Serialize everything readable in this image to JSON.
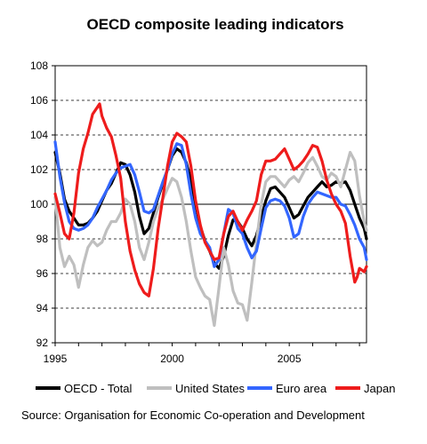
{
  "chart_data": {
    "type": "line",
    "title": "OECD composite leading indicators",
    "xlabel": "",
    "ylabel": "",
    "xlim": [
      1995,
      2008.3
    ],
    "ylim": [
      92,
      108
    ],
    "x_ticks": [
      {
        "value": 1995,
        "label": "1995"
      },
      {
        "value": 2000,
        "label": "2000"
      },
      {
        "value": 2005,
        "label": "2005"
      }
    ],
    "y_ticks": [
      {
        "value": 92,
        "label": "92"
      },
      {
        "value": 94,
        "label": "94"
      },
      {
        "value": 96,
        "label": "96"
      },
      {
        "value": 98,
        "label": "98"
      },
      {
        "value": 100,
        "label": "100"
      },
      {
        "value": 102,
        "label": "102"
      },
      {
        "value": 104,
        "label": "104"
      },
      {
        "value": 106,
        "label": "106"
      },
      {
        "value": 108,
        "label": "108"
      }
    ],
    "grid": "horizontal dashed",
    "baseline": 100,
    "legend_position": "bottom",
    "series": [
      {
        "name": "OECD - Total",
        "color": "#000000",
        "points": [
          [
            1995.0,
            103.0
          ],
          [
            1995.2,
            101.8
          ],
          [
            1995.4,
            100.3
          ],
          [
            1995.6,
            99.6
          ],
          [
            1995.8,
            99.2
          ],
          [
            1996.0,
            98.8
          ],
          [
            1996.2,
            98.8
          ],
          [
            1996.4,
            98.9
          ],
          [
            1996.6,
            99.2
          ],
          [
            1996.8,
            99.6
          ],
          [
            1997.0,
            100.2
          ],
          [
            1997.2,
            100.8
          ],
          [
            1997.4,
            101.2
          ],
          [
            1997.6,
            101.8
          ],
          [
            1997.8,
            102.4
          ],
          [
            1998.0,
            102.3
          ],
          [
            1998.2,
            101.7
          ],
          [
            1998.4,
            100.7
          ],
          [
            1998.6,
            99.3
          ],
          [
            1998.8,
            98.3
          ],
          [
            1999.0,
            98.6
          ],
          [
            1999.2,
            99.5
          ],
          [
            1999.4,
            100.4
          ],
          [
            1999.6,
            101.2
          ],
          [
            1999.8,
            102.0
          ],
          [
            2000.0,
            102.8
          ],
          [
            2000.2,
            103.2
          ],
          [
            2000.4,
            103.0
          ],
          [
            2000.6,
            102.4
          ],
          [
            2000.8,
            101.4
          ],
          [
            2001.0,
            100.0
          ],
          [
            2001.2,
            98.7
          ],
          [
            2001.4,
            97.9
          ],
          [
            2001.6,
            97.3
          ],
          [
            2001.8,
            96.6
          ],
          [
            2002.0,
            96.3
          ],
          [
            2002.2,
            97.0
          ],
          [
            2002.4,
            98.2
          ],
          [
            2002.6,
            99.1
          ],
          [
            2002.8,
            99.0
          ],
          [
            2003.0,
            98.6
          ],
          [
            2003.2,
            98.0
          ],
          [
            2003.4,
            97.6
          ],
          [
            2003.6,
            98.2
          ],
          [
            2003.8,
            99.2
          ],
          [
            2004.0,
            100.2
          ],
          [
            2004.2,
            100.9
          ],
          [
            2004.4,
            101.0
          ],
          [
            2004.6,
            100.7
          ],
          [
            2004.8,
            100.4
          ],
          [
            2005.0,
            99.8
          ],
          [
            2005.2,
            99.2
          ],
          [
            2005.4,
            99.4
          ],
          [
            2005.6,
            99.9
          ],
          [
            2005.8,
            100.4
          ],
          [
            2006.0,
            100.7
          ],
          [
            2006.2,
            101.0
          ],
          [
            2006.4,
            101.3
          ],
          [
            2006.6,
            101.0
          ],
          [
            2006.8,
            101.1
          ],
          [
            2007.0,
            101.3
          ],
          [
            2007.2,
            101.2
          ],
          [
            2007.4,
            101.3
          ],
          [
            2007.6,
            100.8
          ],
          [
            2007.8,
            100.0
          ],
          [
            2008.0,
            99.2
          ],
          [
            2008.2,
            98.6
          ],
          [
            2008.3,
            98.0
          ]
        ]
      },
      {
        "name": "United States",
        "color": "#bfbfbf",
        "points": [
          [
            1995.0,
            100.4
          ],
          [
            1995.2,
            97.5
          ],
          [
            1995.4,
            96.4
          ],
          [
            1995.6,
            97.0
          ],
          [
            1995.8,
            96.5
          ],
          [
            1996.0,
            95.2
          ],
          [
            1996.2,
            96.5
          ],
          [
            1996.4,
            97.5
          ],
          [
            1996.6,
            97.9
          ],
          [
            1996.8,
            97.6
          ],
          [
            1997.0,
            97.8
          ],
          [
            1997.2,
            98.5
          ],
          [
            1997.4,
            99.0
          ],
          [
            1997.6,
            99.0
          ],
          [
            1997.8,
            99.5
          ],
          [
            1998.0,
            100.3
          ],
          [
            1998.2,
            100.0
          ],
          [
            1998.4,
            99.0
          ],
          [
            1998.6,
            97.5
          ],
          [
            1998.8,
            96.8
          ],
          [
            1999.0,
            97.8
          ],
          [
            1999.2,
            99.0
          ],
          [
            1999.4,
            99.8
          ],
          [
            1999.6,
            100.3
          ],
          [
            1999.8,
            100.9
          ],
          [
            2000.0,
            101.5
          ],
          [
            2000.2,
            101.3
          ],
          [
            2000.4,
            100.4
          ],
          [
            2000.6,
            99.0
          ],
          [
            2000.8,
            97.3
          ],
          [
            2001.0,
            95.8
          ],
          [
            2001.2,
            95.2
          ],
          [
            2001.4,
            94.7
          ],
          [
            2001.6,
            94.5
          ],
          [
            2001.8,
            93.0
          ],
          [
            2002.0,
            95.2
          ],
          [
            2002.2,
            97.5
          ],
          [
            2002.4,
            96.5
          ],
          [
            2002.6,
            95.0
          ],
          [
            2002.8,
            94.3
          ],
          [
            2003.0,
            94.2
          ],
          [
            2003.2,
            93.3
          ],
          [
            2003.4,
            95.5
          ],
          [
            2003.6,
            97.8
          ],
          [
            2003.8,
            100.0
          ],
          [
            2004.0,
            101.3
          ],
          [
            2004.2,
            101.6
          ],
          [
            2004.4,
            101.6
          ],
          [
            2004.6,
            101.3
          ],
          [
            2004.8,
            101.0
          ],
          [
            2005.0,
            101.4
          ],
          [
            2005.2,
            101.6
          ],
          [
            2005.4,
            101.3
          ],
          [
            2005.6,
            101.8
          ],
          [
            2005.8,
            102.4
          ],
          [
            2006.0,
            102.7
          ],
          [
            2006.2,
            102.2
          ],
          [
            2006.4,
            101.6
          ],
          [
            2006.6,
            101.4
          ],
          [
            2006.8,
            101.8
          ],
          [
            2007.0,
            101.6
          ],
          [
            2007.2,
            101.0
          ],
          [
            2007.4,
            102.0
          ],
          [
            2007.6,
            103.0
          ],
          [
            2007.8,
            102.5
          ],
          [
            2008.0,
            100.5
          ],
          [
            2008.2,
            99.0
          ],
          [
            2008.3,
            98.5
          ]
        ]
      },
      {
        "name": "Euro area",
        "color": "#3366ff",
        "points": [
          [
            1995.0,
            103.6
          ],
          [
            1995.2,
            101.6
          ],
          [
            1995.4,
            100.1
          ],
          [
            1995.6,
            99.0
          ],
          [
            1995.8,
            98.6
          ],
          [
            1996.0,
            98.5
          ],
          [
            1996.2,
            98.6
          ],
          [
            1996.4,
            98.8
          ],
          [
            1996.6,
            99.2
          ],
          [
            1996.8,
            99.8
          ],
          [
            1997.0,
            100.3
          ],
          [
            1997.2,
            100.8
          ],
          [
            1997.4,
            101.4
          ],
          [
            1997.6,
            101.8
          ],
          [
            1997.8,
            102.1
          ],
          [
            1998.0,
            102.2
          ],
          [
            1998.2,
            102.3
          ],
          [
            1998.4,
            101.7
          ],
          [
            1998.6,
            100.7
          ],
          [
            1998.8,
            99.6
          ],
          [
            1999.0,
            99.5
          ],
          [
            1999.2,
            99.7
          ],
          [
            1999.4,
            100.5
          ],
          [
            1999.6,
            101.3
          ],
          [
            1999.8,
            102.0
          ],
          [
            2000.0,
            102.9
          ],
          [
            2000.2,
            103.5
          ],
          [
            2000.4,
            103.4
          ],
          [
            2000.6,
            102.3
          ],
          [
            2000.8,
            100.6
          ],
          [
            2001.0,
            99.2
          ],
          [
            2001.2,
            98.3
          ],
          [
            2001.4,
            97.9
          ],
          [
            2001.6,
            97.5
          ],
          [
            2001.8,
            96.4
          ],
          [
            2002.0,
            96.8
          ],
          [
            2002.2,
            98.3
          ],
          [
            2002.4,
            99.7
          ],
          [
            2002.6,
            99.5
          ],
          [
            2002.8,
            98.6
          ],
          [
            2003.0,
            98.3
          ],
          [
            2003.2,
            97.5
          ],
          [
            2003.4,
            96.9
          ],
          [
            2003.6,
            97.3
          ],
          [
            2003.8,
            98.6
          ],
          [
            2004.0,
            99.8
          ],
          [
            2004.2,
            100.2
          ],
          [
            2004.4,
            100.3
          ],
          [
            2004.6,
            100.2
          ],
          [
            2004.8,
            99.9
          ],
          [
            2005.0,
            99.2
          ],
          [
            2005.2,
            98.1
          ],
          [
            2005.4,
            98.3
          ],
          [
            2005.6,
            99.3
          ],
          [
            2005.8,
            100.0
          ],
          [
            2006.0,
            100.4
          ],
          [
            2006.2,
            100.7
          ],
          [
            2006.4,
            100.6
          ],
          [
            2006.6,
            100.5
          ],
          [
            2006.8,
            100.4
          ],
          [
            2007.0,
            100.4
          ],
          [
            2007.2,
            100.0
          ],
          [
            2007.4,
            99.9
          ],
          [
            2007.6,
            99.4
          ],
          [
            2007.8,
            98.8
          ],
          [
            2008.0,
            98.0
          ],
          [
            2008.2,
            97.5
          ],
          [
            2008.3,
            96.8
          ]
        ]
      },
      {
        "name": "Japan",
        "color": "#ee1c1c",
        "points": [
          [
            1995.0,
            100.6
          ],
          [
            1995.2,
            99.5
          ],
          [
            1995.4,
            98.3
          ],
          [
            1995.6,
            98.0
          ],
          [
            1995.8,
            99.5
          ],
          [
            1996.0,
            101.8
          ],
          [
            1996.2,
            103.2
          ],
          [
            1996.4,
            104.1
          ],
          [
            1996.6,
            105.2
          ],
          [
            1996.8,
            105.6
          ],
          [
            1996.9,
            105.8
          ],
          [
            1997.0,
            105.1
          ],
          [
            1997.2,
            104.4
          ],
          [
            1997.4,
            103.9
          ],
          [
            1997.6,
            102.8
          ],
          [
            1997.8,
            101.5
          ],
          [
            1998.0,
            99.0
          ],
          [
            1998.2,
            97.3
          ],
          [
            1998.4,
            96.2
          ],
          [
            1998.6,
            95.4
          ],
          [
            1998.8,
            94.9
          ],
          [
            1999.0,
            94.7
          ],
          [
            1999.2,
            96.3
          ],
          [
            1999.4,
            98.6
          ],
          [
            1999.6,
            100.4
          ],
          [
            1999.8,
            102.2
          ],
          [
            2000.0,
            103.6
          ],
          [
            2000.2,
            104.1
          ],
          [
            2000.4,
            103.9
          ],
          [
            2000.6,
            103.6
          ],
          [
            2000.8,
            102.2
          ],
          [
            2001.0,
            100.2
          ],
          [
            2001.2,
            98.8
          ],
          [
            2001.4,
            97.8
          ],
          [
            2001.6,
            97.3
          ],
          [
            2001.8,
            96.8
          ],
          [
            2002.0,
            96.9
          ],
          [
            2002.2,
            98.3
          ],
          [
            2002.4,
            99.3
          ],
          [
            2002.6,
            99.6
          ],
          [
            2002.8,
            99.0
          ],
          [
            2003.0,
            98.5
          ],
          [
            2003.2,
            99.1
          ],
          [
            2003.4,
            99.6
          ],
          [
            2003.6,
            100.2
          ],
          [
            2003.8,
            101.7
          ],
          [
            2004.0,
            102.5
          ],
          [
            2004.2,
            102.5
          ],
          [
            2004.4,
            102.6
          ],
          [
            2004.6,
            102.9
          ],
          [
            2004.8,
            103.2
          ],
          [
            2005.0,
            102.6
          ],
          [
            2005.2,
            102.0
          ],
          [
            2005.4,
            102.2
          ],
          [
            2005.6,
            102.5
          ],
          [
            2005.8,
            102.9
          ],
          [
            2006.0,
            103.4
          ],
          [
            2006.2,
            103.3
          ],
          [
            2006.4,
            102.5
          ],
          [
            2006.6,
            101.4
          ],
          [
            2006.8,
            100.6
          ],
          [
            2007.0,
            100.0
          ],
          [
            2007.2,
            99.6
          ],
          [
            2007.4,
            98.9
          ],
          [
            2007.6,
            97.0
          ],
          [
            2007.8,
            95.5
          ],
          [
            2007.9,
            95.8
          ],
          [
            2008.0,
            96.3
          ],
          [
            2008.2,
            96.1
          ],
          [
            2008.3,
            96.4
          ]
        ]
      }
    ]
  },
  "source": "Source: Organisation for Economic Co-operation and Development"
}
